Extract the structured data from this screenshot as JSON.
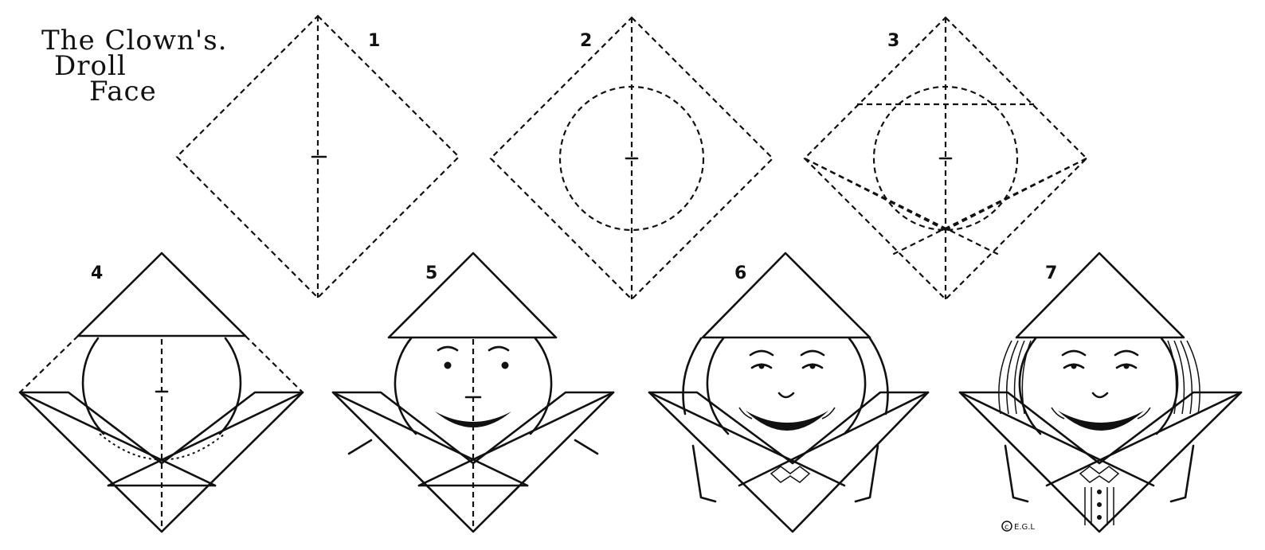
{
  "title": {
    "line1": "The Clown's.",
    "line2": "Droll",
    "line3": "Face"
  },
  "steps": [
    {
      "number": "1"
    },
    {
      "number": "2"
    },
    {
      "number": "3"
    },
    {
      "number": "4"
    },
    {
      "number": "5"
    },
    {
      "number": "6"
    },
    {
      "number": "7"
    }
  ],
  "credit": "E.G.L",
  "colors": {
    "ink": "#111111",
    "paper": "#ffffff"
  }
}
